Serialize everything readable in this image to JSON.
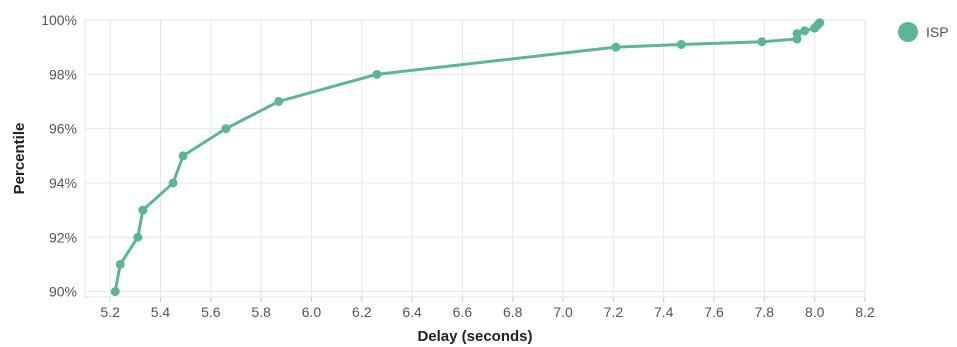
{
  "chart_data": {
    "type": "line",
    "title": "",
    "xlabel": "Delay (seconds)",
    "ylabel": "Percentile",
    "xlim": [
      5.1,
      8.2
    ],
    "ylim": [
      89.8,
      100
    ],
    "x_ticks": [
      5.2,
      5.4,
      5.6,
      5.8,
      6.0,
      6.2,
      6.4,
      6.6,
      6.8,
      7.0,
      7.2,
      7.4,
      7.6,
      7.8,
      8.0,
      8.2
    ],
    "x_tick_labels": [
      "5.2",
      "5.4",
      "5.6",
      "5.8",
      "6.0",
      "6.2",
      "6.4",
      "6.6",
      "6.8",
      "7.0",
      "7.2",
      "7.4",
      "7.6",
      "7.8",
      "8.0",
      "8.2"
    ],
    "y_ticks": [
      90,
      92,
      94,
      96,
      98,
      100
    ],
    "y_tick_labels": [
      "90%",
      "92%",
      "94%",
      "96%",
      "98%",
      "100%"
    ],
    "grid": true,
    "legend_position": "top-right",
    "series": [
      {
        "name": "ISP",
        "color": "#5bb596",
        "points": [
          {
            "x": 5.22,
            "y": 90.0
          },
          {
            "x": 5.24,
            "y": 91.0
          },
          {
            "x": 5.31,
            "y": 92.0
          },
          {
            "x": 5.33,
            "y": 93.0
          },
          {
            "x": 5.45,
            "y": 94.0
          },
          {
            "x": 5.49,
            "y": 95.0
          },
          {
            "x": 5.66,
            "y": 96.0
          },
          {
            "x": 5.87,
            "y": 97.0
          },
          {
            "x": 6.26,
            "y": 98.0
          },
          {
            "x": 7.21,
            "y": 99.0
          },
          {
            "x": 7.47,
            "y": 99.1
          },
          {
            "x": 7.79,
            "y": 99.2
          },
          {
            "x": 7.93,
            "y": 99.3
          },
          {
            "x": 7.93,
            "y": 99.5
          },
          {
            "x": 7.96,
            "y": 99.6
          },
          {
            "x": 8.0,
            "y": 99.7
          },
          {
            "x": 8.01,
            "y": 99.8
          },
          {
            "x": 8.02,
            "y": 99.9
          }
        ]
      }
    ]
  }
}
